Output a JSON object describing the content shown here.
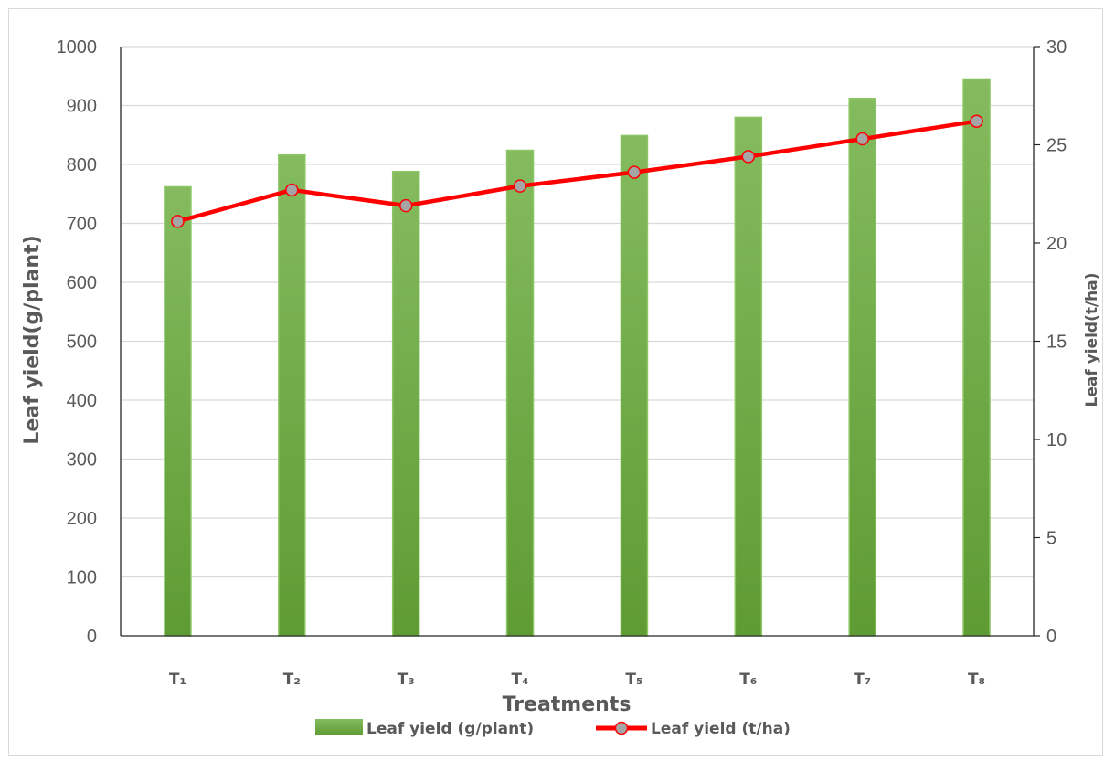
{
  "chart_data": {
    "type": "bar",
    "categories": [
      "T₁",
      "T₂",
      "T₃",
      "T₄",
      "T₅",
      "T₆",
      "T₇",
      "T₈"
    ],
    "series": [
      {
        "name": "Leaf yield (g/plant)",
        "type": "bar",
        "axis": "left",
        "values": [
          762,
          816,
          788,
          824,
          849,
          880,
          912,
          945
        ],
        "color": "#70ad47"
      },
      {
        "name": "Leaf yield (t/ha)",
        "type": "line",
        "axis": "right",
        "values": [
          21.1,
          22.7,
          21.9,
          22.9,
          23.6,
          24.4,
          25.3,
          26.2
        ],
        "color": "#ff0000",
        "marker_fill": "#a5a5a5"
      }
    ],
    "xlabel": "Treatments",
    "ylabel": "Leaf yield(g/plant)",
    "y2label": "Leaf yield(t/ha)",
    "ylim": [
      0,
      1000
    ],
    "y2lim": [
      0,
      30
    ],
    "yticks": [
      0,
      100,
      200,
      300,
      400,
      500,
      600,
      700,
      800,
      900,
      1000
    ],
    "y2ticks": [
      0,
      5,
      10,
      15,
      20,
      25,
      30
    ],
    "grid": true,
    "legend": "bottom"
  }
}
